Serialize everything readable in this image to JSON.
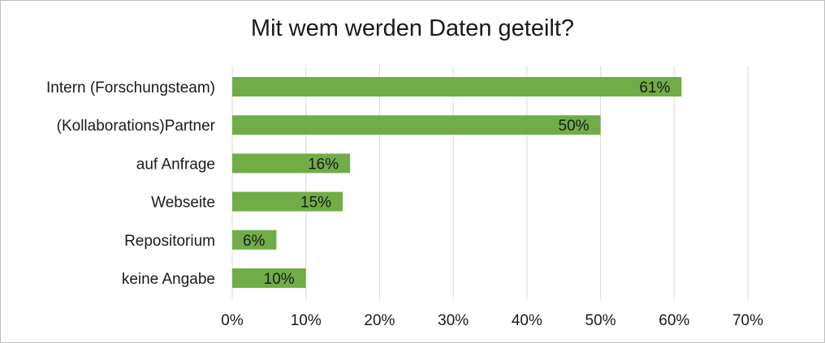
{
  "chart_data": {
    "type": "bar",
    "orientation": "horizontal",
    "title": "Mit wem werden Daten geteilt?",
    "xlabel": "",
    "ylabel": "",
    "categories": [
      "Intern (Forschungsteam)",
      "(Kollaborations)Partner",
      "auf Anfrage",
      "Webseite",
      "Repositorium",
      "keine Angabe"
    ],
    "values": [
      61,
      50,
      16,
      15,
      6,
      10
    ],
    "data_labels": [
      "61%",
      "50%",
      "16%",
      "15%",
      "6%",
      "10%"
    ],
    "xlim": [
      0,
      70
    ],
    "x_ticks": [
      0,
      10,
      20,
      30,
      40,
      50,
      60,
      70
    ],
    "x_tick_labels": [
      "0%",
      "10%",
      "20%",
      "30%",
      "40%",
      "50%",
      "60%",
      "70%"
    ],
    "grid": true,
    "legend": "none",
    "colors": {
      "bar": "#70ad47",
      "grid": "#d9d9d9",
      "text": "#1a1a1a",
      "border": "#bfbfbf"
    }
  }
}
